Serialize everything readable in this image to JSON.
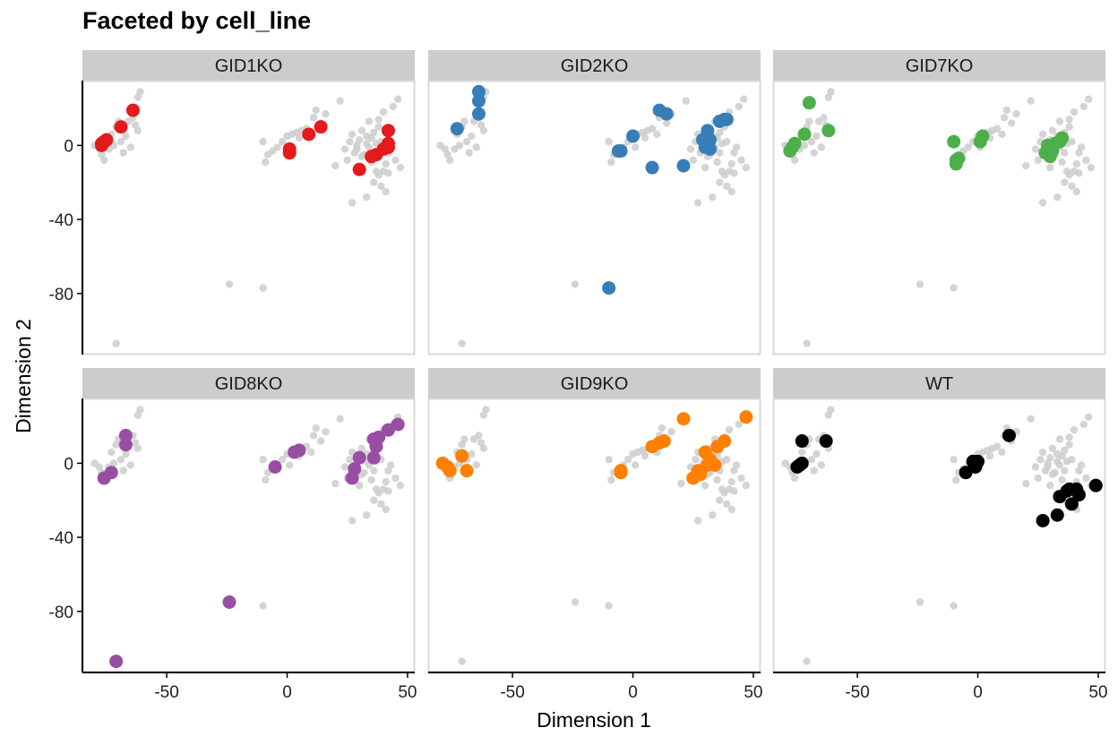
{
  "chart_data": {
    "type": "scatter",
    "title": "Faceted by cell_line",
    "xlabel": "Dimension 1",
    "ylabel": "Dimension 2",
    "xlim": [
      -85,
      53
    ],
    "ylim": [
      -113,
      35
    ],
    "xticks": [
      -50,
      0,
      50
    ],
    "yticks": [
      0,
      -40,
      -80
    ],
    "grid": false,
    "legend": "none",
    "background_color": "#cccccc",
    "strip_color": "#cccccc",
    "panels": [
      {
        "name": "GID1KO",
        "color": "#e41a1c",
        "points": [
          [
            -77,
            1
          ],
          [
            -77,
            0
          ],
          [
            -76,
            2
          ],
          [
            -75,
            3
          ],
          [
            -69,
            10
          ],
          [
            -64,
            19
          ],
          [
            1,
            -2
          ],
          [
            1,
            -4
          ],
          [
            9,
            6
          ],
          [
            14,
            10
          ],
          [
            30,
            -13
          ],
          [
            35,
            -6
          ],
          [
            37,
            -5
          ],
          [
            40,
            -2
          ],
          [
            42,
            -1
          ],
          [
            42,
            1
          ],
          [
            42,
            8
          ]
        ]
      },
      {
        "name": "GID2KO",
        "color": "#377eb8",
        "points": [
          [
            -73,
            9
          ],
          [
            -64,
            29
          ],
          [
            -64,
            24
          ],
          [
            -64,
            17
          ],
          [
            -6,
            -3
          ],
          [
            -5,
            -3
          ],
          [
            0,
            5
          ],
          [
            8,
            -12
          ],
          [
            11,
            19
          ],
          [
            14,
            17
          ],
          [
            21,
            -11
          ],
          [
            29,
            3
          ],
          [
            30,
            -1
          ],
          [
            31,
            8
          ],
          [
            32,
            3
          ],
          [
            32,
            -2
          ],
          [
            36,
            13
          ],
          [
            38,
            14
          ],
          [
            39,
            14
          ],
          [
            -10,
            -77
          ]
        ]
      },
      {
        "name": "GID7KO",
        "color": "#4daf4a",
        "points": [
          [
            -78,
            -3
          ],
          [
            -77,
            -1
          ],
          [
            -76,
            1
          ],
          [
            -72,
            6
          ],
          [
            -70,
            23
          ],
          [
            -62,
            8
          ],
          [
            -10,
            2
          ],
          [
            -9,
            -10
          ],
          [
            -9,
            -8
          ],
          [
            -8,
            -7
          ],
          [
            1,
            2
          ],
          [
            2,
            5
          ],
          [
            28,
            -4
          ],
          [
            29,
            0
          ],
          [
            30,
            -5
          ],
          [
            30,
            -6
          ],
          [
            31,
            -3
          ],
          [
            32,
            1
          ],
          [
            34,
            2
          ],
          [
            35,
            4
          ]
        ]
      },
      {
        "name": "GID8KO",
        "color": "#984ea3",
        "points": [
          [
            -76,
            -8
          ],
          [
            -73,
            -5
          ],
          [
            -67,
            15
          ],
          [
            -67,
            10
          ],
          [
            -24,
            -75
          ],
          [
            -5,
            -2
          ],
          [
            3,
            6
          ],
          [
            5,
            7
          ],
          [
            27,
            -8
          ],
          [
            28,
            -3
          ],
          [
            30,
            3
          ],
          [
            36,
            3
          ],
          [
            36,
            13
          ],
          [
            37,
            9
          ],
          [
            38,
            14
          ],
          [
            42,
            18
          ],
          [
            46,
            21
          ],
          [
            -71,
            -107
          ]
        ]
      },
      {
        "name": "GID9KO",
        "color": "#ff7f00",
        "points": [
          [
            -79,
            0
          ],
          [
            -77,
            -2
          ],
          [
            -76,
            -4
          ],
          [
            -71,
            4
          ],
          [
            -69,
            -4
          ],
          [
            -5,
            -5
          ],
          [
            -5,
            -4
          ],
          [
            8,
            9
          ],
          [
            11,
            11
          ],
          [
            13,
            12
          ],
          [
            21,
            24
          ],
          [
            25,
            -8
          ],
          [
            27,
            -4
          ],
          [
            28,
            -6
          ],
          [
            30,
            6
          ],
          [
            31,
            -1
          ],
          [
            32,
            2
          ],
          [
            34,
            -1
          ],
          [
            35,
            9
          ],
          [
            38,
            12
          ],
          [
            47,
            25
          ]
        ]
      },
      {
        "name": "WT",
        "color": "#000000",
        "points": [
          [
            -75,
            -2
          ],
          [
            -74,
            -1
          ],
          [
            -73,
            0
          ],
          [
            -73,
            12
          ],
          [
            -63,
            12
          ],
          [
            -5,
            -5
          ],
          [
            -2,
            1
          ],
          [
            -1,
            -2
          ],
          [
            0,
            1
          ],
          [
            13,
            15
          ],
          [
            27,
            -31
          ],
          [
            33,
            -28
          ],
          [
            34,
            -18
          ],
          [
            37,
            -15
          ],
          [
            38,
            -14
          ],
          [
            39,
            -22
          ],
          [
            41,
            -14
          ],
          [
            42,
            -17
          ],
          [
            49,
            -12
          ]
        ]
      }
    ],
    "background_points": [
      [
        -80,
        0
      ],
      [
        -78,
        -2
      ],
      [
        -77,
        -5
      ],
      [
        -76,
        -8
      ],
      [
        -74,
        -2
      ],
      [
        -73,
        6
      ],
      [
        -72,
        0
      ],
      [
        -71,
        10
      ],
      [
        -70,
        13
      ],
      [
        -69,
        2
      ],
      [
        -68,
        -4
      ],
      [
        -67,
        5
      ],
      [
        -66,
        13
      ],
      [
        -65,
        -1
      ],
      [
        -64,
        15
      ],
      [
        -63,
        11
      ],
      [
        -62,
        8
      ],
      [
        -62,
        26
      ],
      [
        -61,
        29
      ],
      [
        -24,
        -75
      ],
      [
        -10,
        -77
      ],
      [
        -71,
        -107
      ],
      [
        -10,
        2
      ],
      [
        -9,
        -9
      ],
      [
        -8,
        -5
      ],
      [
        -6,
        -3
      ],
      [
        -4,
        -1
      ],
      [
        -2,
        2
      ],
      [
        0,
        5
      ],
      [
        1,
        -1
      ],
      [
        2,
        6
      ],
      [
        4,
        7
      ],
      [
        5,
        4
      ],
      [
        6,
        8
      ],
      [
        8,
        9
      ],
      [
        10,
        6
      ],
      [
        11,
        15
      ],
      [
        12,
        19
      ],
      [
        14,
        12
      ],
      [
        16,
        17
      ],
      [
        20,
        -11
      ],
      [
        22,
        24
      ],
      [
        24,
        -2
      ],
      [
        25,
        -8
      ],
      [
        26,
        2
      ],
      [
        27,
        -31
      ],
      [
        27,
        6
      ],
      [
        28,
        -4
      ],
      [
        29,
        0
      ],
      [
        30,
        3
      ],
      [
        30,
        -12
      ],
      [
        31,
        8
      ],
      [
        32,
        -5
      ],
      [
        33,
        -28
      ],
      [
        33,
        1
      ],
      [
        34,
        -1
      ],
      [
        34,
        13
      ],
      [
        35,
        4
      ],
      [
        36,
        -20
      ],
      [
        36,
        -4
      ],
      [
        37,
        -14
      ],
      [
        37,
        1
      ],
      [
        38,
        14
      ],
      [
        38,
        -16
      ],
      [
        39,
        -22
      ],
      [
        39,
        2
      ],
      [
        40,
        -14
      ],
      [
        40,
        18
      ],
      [
        41,
        -10
      ],
      [
        41,
        -25
      ],
      [
        42,
        -4
      ],
      [
        42,
        -15
      ],
      [
        43,
        -1
      ],
      [
        44,
        21
      ],
      [
        45,
        -8
      ],
      [
        46,
        25
      ],
      [
        47,
        -12
      ],
      [
        38,
        10
      ],
      [
        35,
        -9
      ],
      [
        31,
        -6
      ],
      [
        29,
        -2
      ],
      [
        33,
        5
      ],
      [
        36,
        7
      ]
    ]
  }
}
